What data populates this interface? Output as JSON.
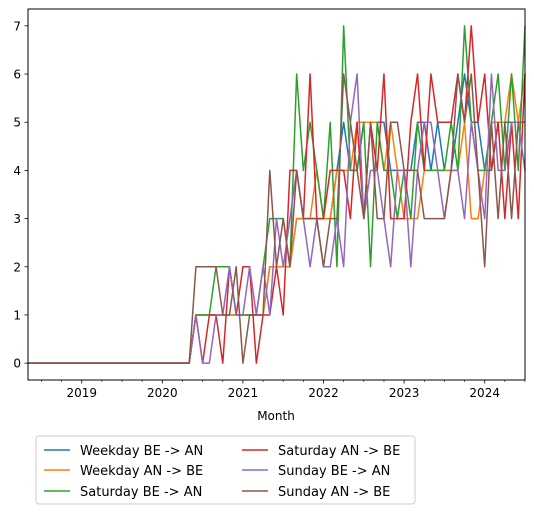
{
  "chart_data": {
    "type": "line",
    "xlabel": "Month",
    "ylabel": "",
    "ylim": [
      -0.35,
      7.35
    ],
    "xlim": [
      "2018-05",
      "2024-07"
    ],
    "x_tick_labels": [
      "2019",
      "2020",
      "2021",
      "2022",
      "2023",
      "2024"
    ],
    "y_tick_labels": [
      "0",
      "1",
      "2",
      "3",
      "4",
      "5",
      "6",
      "7"
    ],
    "grid": false,
    "legend_placement": "below-center",
    "x": [
      "2018-05",
      "2018-06",
      "2018-07",
      "2018-08",
      "2018-09",
      "2018-10",
      "2018-11",
      "2018-12",
      "2019-01",
      "2019-02",
      "2019-03",
      "2019-04",
      "2019-05",
      "2019-06",
      "2019-07",
      "2019-08",
      "2019-09",
      "2019-10",
      "2019-11",
      "2019-12",
      "2020-01",
      "2020-02",
      "2020-03",
      "2020-04",
      "2020-05",
      "2020-06",
      "2020-07",
      "2020-08",
      "2020-09",
      "2020-10",
      "2020-11",
      "2020-12",
      "2021-01",
      "2021-02",
      "2021-03",
      "2021-04",
      "2021-05",
      "2021-06",
      "2021-07",
      "2021-08",
      "2021-09",
      "2021-10",
      "2021-11",
      "2021-12",
      "2022-01",
      "2022-02",
      "2022-03",
      "2022-04",
      "2022-05",
      "2022-06",
      "2022-07",
      "2022-08",
      "2022-09",
      "2022-10",
      "2022-11",
      "2022-12",
      "2023-01",
      "2023-02",
      "2023-03",
      "2023-04",
      "2023-05",
      "2023-06",
      "2023-07",
      "2023-08",
      "2023-09",
      "2023-10",
      "2023-11",
      "2023-12",
      "2024-01",
      "2024-02",
      "2024-03",
      "2024-04",
      "2024-05",
      "2024-06",
      "2024-07"
    ],
    "series": [
      {
        "name": "Weekday BE -> AN",
        "color": "#1f77b4",
        "values": [
          0,
          0,
          0,
          0,
          0,
          0,
          0,
          0,
          0,
          0,
          0,
          0,
          0,
          0,
          0,
          0,
          0,
          0,
          0,
          0,
          0,
          0,
          0,
          0,
          0,
          1,
          1,
          1,
          1,
          1,
          1,
          1,
          1,
          1,
          1,
          1,
          2,
          2,
          2,
          2,
          3,
          3,
          3,
          3,
          3,
          3,
          4,
          5,
          4,
          4,
          5,
          5,
          5,
          5,
          4,
          4,
          4,
          4,
          5,
          5,
          4,
          5,
          4,
          4,
          5,
          6,
          5,
          5,
          4,
          4,
          5,
          5,
          5,
          5,
          4
        ]
      },
      {
        "name": "Weekday AN -> BE",
        "color": "#ff7f0e",
        "values": [
          0,
          0,
          0,
          0,
          0,
          0,
          0,
          0,
          0,
          0,
          0,
          0,
          0,
          0,
          0,
          0,
          0,
          0,
          0,
          0,
          0,
          0,
          0,
          0,
          0,
          1,
          1,
          1,
          1,
          1,
          1,
          1,
          1,
          1,
          1,
          1,
          2,
          2,
          2,
          2,
          3,
          3,
          3,
          4,
          3,
          3,
          4,
          4,
          4,
          5,
          5,
          5,
          5,
          4,
          5,
          4,
          3,
          3,
          3,
          4,
          4,
          4,
          4,
          4,
          4,
          5,
          3,
          3,
          4,
          5,
          5,
          5,
          6,
          5,
          6
        ]
      },
      {
        "name": "Saturday BE -> AN",
        "color": "#2ca02c",
        "values": [
          0,
          0,
          0,
          0,
          0,
          0,
          0,
          0,
          0,
          0,
          0,
          0,
          0,
          0,
          0,
          0,
          0,
          0,
          0,
          0,
          0,
          0,
          0,
          0,
          0,
          1,
          1,
          1,
          2,
          2,
          2,
          1,
          1,
          1,
          1,
          2,
          3,
          3,
          3,
          2,
          6,
          4,
          5,
          4,
          3,
          5,
          2,
          7,
          4,
          4,
          5,
          2,
          5,
          4,
          4,
          3,
          4,
          3,
          5,
          4,
          4,
          4,
          4,
          5,
          4,
          7,
          5,
          4,
          4,
          5,
          6,
          4,
          6,
          4,
          7
        ]
      },
      {
        "name": "Saturday AN -> BE",
        "color": "#d62728",
        "values": [
          0,
          0,
          0,
          0,
          0,
          0,
          0,
          0,
          0,
          0,
          0,
          0,
          0,
          0,
          0,
          0,
          0,
          0,
          0,
          0,
          0,
          0,
          0,
          0,
          0,
          1,
          0,
          1,
          1,
          0,
          2,
          1,
          2,
          2,
          0,
          1,
          1,
          2,
          1,
          4,
          4,
          3,
          6,
          3,
          3,
          4,
          4,
          4,
          3,
          5,
          3,
          5,
          4,
          6,
          3,
          3,
          3,
          5,
          6,
          4,
          6,
          5,
          5,
          5,
          6,
          5,
          7,
          5,
          6,
          4,
          5,
          3,
          5,
          3,
          6
        ]
      },
      {
        "name": "Sunday BE -> AN",
        "color": "#9467bd",
        "values": [
          0,
          0,
          0,
          0,
          0,
          0,
          0,
          0,
          0,
          0,
          0,
          0,
          0,
          0,
          0,
          0,
          0,
          0,
          0,
          0,
          0,
          0,
          0,
          0,
          0,
          1,
          0,
          0,
          1,
          1,
          2,
          1,
          1,
          2,
          1,
          2,
          1,
          3,
          2,
          3,
          4,
          3,
          2,
          3,
          2,
          2,
          3,
          2,
          5,
          6,
          3,
          4,
          4,
          3,
          2,
          4,
          4,
          2,
          4,
          5,
          5,
          4,
          3,
          4,
          4,
          3,
          5,
          4,
          3,
          6,
          4,
          4,
          5,
          5,
          4
        ]
      },
      {
        "name": "Sunday AN -> BE",
        "color": "#8c564b",
        "values": [
          0,
          0,
          0,
          0,
          0,
          0,
          0,
          0,
          0,
          0,
          0,
          0,
          0,
          0,
          0,
          0,
          0,
          0,
          0,
          0,
          0,
          0,
          0,
          0,
          0,
          2,
          2,
          2,
          2,
          1,
          1,
          2,
          0,
          1,
          1,
          1,
          4,
          2,
          3,
          2,
          4,
          3,
          3,
          3,
          2,
          3,
          3,
          6,
          5,
          4,
          3,
          5,
          3,
          3,
          5,
          5,
          4,
          4,
          4,
          3,
          3,
          3,
          3,
          4,
          6,
          5,
          6,
          4,
          2,
          5,
          3,
          5,
          3,
          5,
          5
        ]
      }
    ]
  }
}
